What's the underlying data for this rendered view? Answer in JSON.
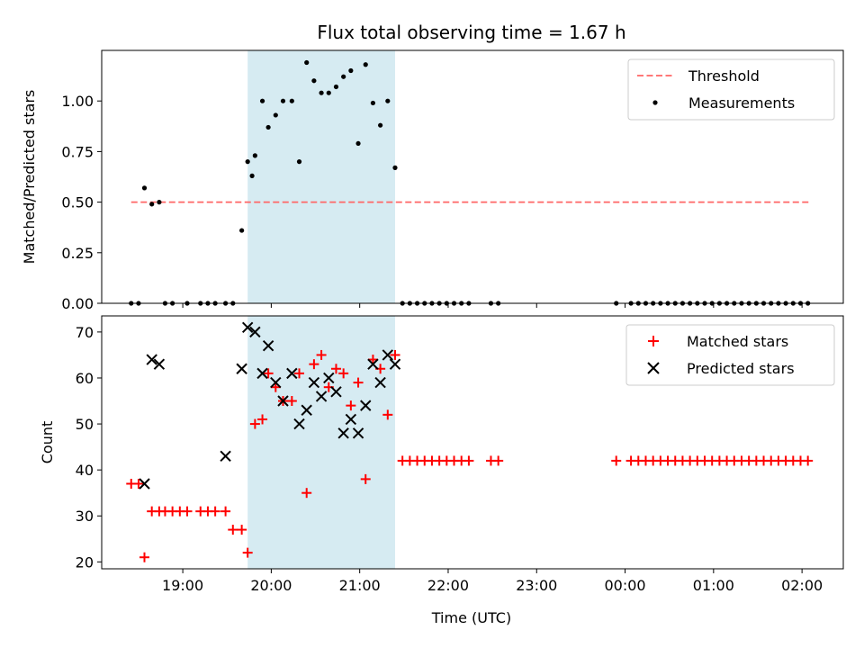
{
  "chart_data": {
    "type": "scatter",
    "title": "Flux total observing time = 1.67 h",
    "xlabel": "Time (UTC)",
    "xlim": [
      "18:05",
      "02:28"
    ],
    "x_ticks": [
      "19:00",
      "20:00",
      "21:00",
      "22:00",
      "23:00",
      "00:00",
      "01:00",
      "02:00"
    ],
    "highlight_span": {
      "start": "19:44",
      "end": "21:24",
      "color": "#add8e6"
    },
    "top": {
      "ylabel": "Matched/Predicted stars",
      "ylim": [
        0,
        1.25
      ],
      "y_ticks": [
        "0.00",
        "0.25",
        "0.50",
        "0.75",
        "1.00"
      ],
      "legend_position": "upper right",
      "threshold": {
        "name": "Threshold",
        "value": 0.5,
        "x_start": "18:25",
        "x_end": "02:05",
        "color": "#ff6666"
      },
      "measurements": {
        "name": "Measurements",
        "color": "#000000",
        "points": [
          [
            "18:25",
            0
          ],
          [
            "18:30",
            0
          ],
          [
            "18:34",
            0.57
          ],
          [
            "18:39",
            0.49
          ],
          [
            "18:44",
            0.5
          ],
          [
            "18:48",
            0
          ],
          [
            "18:53",
            0
          ],
          [
            "19:03",
            0
          ],
          [
            "19:12",
            0
          ],
          [
            "19:17",
            0
          ],
          [
            "19:22",
            0
          ],
          [
            "19:29",
            0
          ],
          [
            "19:34",
            0
          ],
          [
            "19:40",
            0.36
          ],
          [
            "19:44",
            0.7
          ],
          [
            "19:47",
            0.63
          ],
          [
            "19:49",
            0.73
          ],
          [
            "19:54",
            1.0
          ],
          [
            "19:58",
            0.87
          ],
          [
            "20:03",
            0.93
          ],
          [
            "20:08",
            1.0
          ],
          [
            "20:14",
            1.0
          ],
          [
            "20:19",
            0.7
          ],
          [
            "20:24",
            1.19
          ],
          [
            "20:29",
            1.1
          ],
          [
            "20:34",
            1.04
          ],
          [
            "20:39",
            1.04
          ],
          [
            "20:44",
            1.07
          ],
          [
            "20:49",
            1.12
          ],
          [
            "20:54",
            1.15
          ],
          [
            "20:59",
            0.79
          ],
          [
            "21:04",
            1.18
          ],
          [
            "21:09",
            0.99
          ],
          [
            "21:14",
            0.88
          ],
          [
            "21:19",
            1.0
          ],
          [
            "21:24",
            0.67
          ],
          [
            "21:29",
            0
          ],
          [
            "21:34",
            0
          ],
          [
            "21:39",
            0
          ],
          [
            "21:44",
            0
          ],
          [
            "21:49",
            0
          ],
          [
            "21:54",
            0
          ],
          [
            "21:59",
            0
          ],
          [
            "22:04",
            0
          ],
          [
            "22:09",
            0
          ],
          [
            "22:14",
            0
          ],
          [
            "22:29",
            0
          ],
          [
            "22:34",
            0
          ],
          [
            "23:54",
            0
          ],
          [
            "00:04",
            0
          ],
          [
            "00:09",
            0
          ],
          [
            "00:14",
            0
          ],
          [
            "00:19",
            0
          ],
          [
            "00:24",
            0
          ],
          [
            "00:29",
            0
          ],
          [
            "00:34",
            0
          ],
          [
            "00:39",
            0
          ],
          [
            "00:44",
            0
          ],
          [
            "00:49",
            0
          ],
          [
            "00:54",
            0
          ],
          [
            "00:59",
            0
          ],
          [
            "01:04",
            0
          ],
          [
            "01:09",
            0
          ],
          [
            "01:14",
            0
          ],
          [
            "01:19",
            0
          ],
          [
            "01:24",
            0
          ],
          [
            "01:29",
            0
          ],
          [
            "01:34",
            0
          ],
          [
            "01:39",
            0
          ],
          [
            "01:44",
            0
          ],
          [
            "01:49",
            0
          ],
          [
            "01:54",
            0
          ],
          [
            "01:59",
            0
          ],
          [
            "02:04",
            0
          ]
        ]
      }
    },
    "bottom": {
      "ylabel": "Count",
      "ylim": [
        18.5,
        73.5
      ],
      "y_ticks": [
        "20",
        "30",
        "40",
        "50",
        "60",
        "70"
      ],
      "legend_position": "upper right",
      "matched": {
        "name": "Matched stars",
        "color": "#ff0000",
        "points": [
          [
            "18:25",
            37
          ],
          [
            "18:30",
            37
          ],
          [
            "18:34",
            21
          ],
          [
            "18:39",
            31
          ],
          [
            "18:44",
            31
          ],
          [
            "18:48",
            31
          ],
          [
            "18:53",
            31
          ],
          [
            "18:58",
            31
          ],
          [
            "19:03",
            31
          ],
          [
            "19:12",
            31
          ],
          [
            "19:17",
            31
          ],
          [
            "19:22",
            31
          ],
          [
            "19:29",
            31
          ],
          [
            "19:34",
            27
          ],
          [
            "19:40",
            27
          ],
          [
            "19:44",
            22
          ],
          [
            "19:49",
            50
          ],
          [
            "19:54",
            51
          ],
          [
            "19:58",
            61
          ],
          [
            "20:03",
            58
          ],
          [
            "20:08",
            55
          ],
          [
            "20:14",
            55
          ],
          [
            "20:19",
            61
          ],
          [
            "20:24",
            35
          ],
          [
            "20:29",
            63
          ],
          [
            "20:34",
            65
          ],
          [
            "20:39",
            58
          ],
          [
            "20:44",
            62
          ],
          [
            "20:49",
            61
          ],
          [
            "20:54",
            54
          ],
          [
            "20:59",
            59
          ],
          [
            "21:04",
            38
          ],
          [
            "21:09",
            64
          ],
          [
            "21:14",
            62
          ],
          [
            "21:19",
            52
          ],
          [
            "21:24",
            65
          ],
          [
            "21:29",
            42
          ],
          [
            "21:34",
            42
          ],
          [
            "21:39",
            42
          ],
          [
            "21:44",
            42
          ],
          [
            "21:49",
            42
          ],
          [
            "21:54",
            42
          ],
          [
            "21:59",
            42
          ],
          [
            "22:04",
            42
          ],
          [
            "22:09",
            42
          ],
          [
            "22:14",
            42
          ],
          [
            "22:29",
            42
          ],
          [
            "22:34",
            42
          ],
          [
            "23:54",
            42
          ],
          [
            "00:04",
            42
          ],
          [
            "00:09",
            42
          ],
          [
            "00:14",
            42
          ],
          [
            "00:19",
            42
          ],
          [
            "00:24",
            42
          ],
          [
            "00:29",
            42
          ],
          [
            "00:34",
            42
          ],
          [
            "00:39",
            42
          ],
          [
            "00:44",
            42
          ],
          [
            "00:49",
            42
          ],
          [
            "00:54",
            42
          ],
          [
            "00:59",
            42
          ],
          [
            "01:04",
            42
          ],
          [
            "01:09",
            42
          ],
          [
            "01:14",
            42
          ],
          [
            "01:19",
            42
          ],
          [
            "01:24",
            42
          ],
          [
            "01:29",
            42
          ],
          [
            "01:34",
            42
          ],
          [
            "01:39",
            42
          ],
          [
            "01:44",
            42
          ],
          [
            "01:49",
            42
          ],
          [
            "01:54",
            42
          ],
          [
            "01:59",
            42
          ],
          [
            "02:04",
            42
          ]
        ]
      },
      "predicted": {
        "name": "Predicted stars",
        "color": "#000000",
        "points": [
          [
            "18:34",
            37
          ],
          [
            "18:39",
            64
          ],
          [
            "18:44",
            63
          ],
          [
            "19:29",
            43
          ],
          [
            "19:40",
            62
          ],
          [
            "19:44",
            71
          ],
          [
            "19:49",
            70
          ],
          [
            "19:54",
            61
          ],
          [
            "19:58",
            67
          ],
          [
            "20:03",
            59
          ],
          [
            "20:08",
            55
          ],
          [
            "20:14",
            61
          ],
          [
            "20:19",
            50
          ],
          [
            "20:24",
            53
          ],
          [
            "20:29",
            59
          ],
          [
            "20:34",
            56
          ],
          [
            "20:39",
            60
          ],
          [
            "20:44",
            57
          ],
          [
            "20:49",
            48
          ],
          [
            "20:54",
            51
          ],
          [
            "20:59",
            48
          ],
          [
            "21:04",
            54
          ],
          [
            "21:09",
            63
          ],
          [
            "21:14",
            59
          ],
          [
            "21:19",
            65
          ],
          [
            "21:24",
            63
          ]
        ]
      }
    }
  }
}
